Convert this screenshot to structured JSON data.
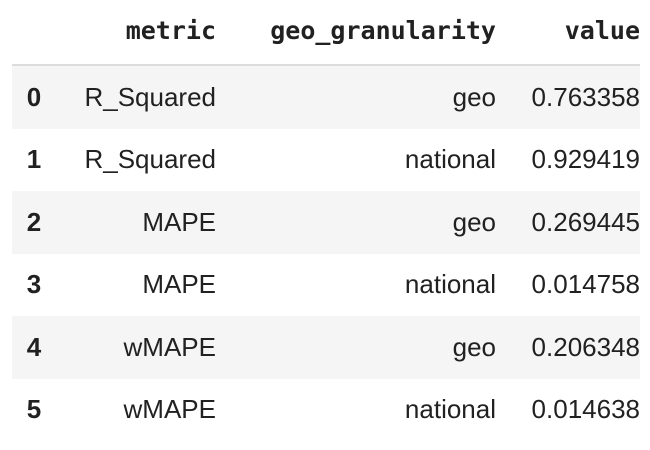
{
  "columns": [
    "",
    "metric",
    "geo_granularity",
    "value"
  ],
  "rows": [
    {
      "index": "0",
      "metric": "R_Squared",
      "geo_granularity": "geo",
      "value": "0.763358"
    },
    {
      "index": "1",
      "metric": "R_Squared",
      "geo_granularity": "national",
      "value": "0.929419"
    },
    {
      "index": "2",
      "metric": "MAPE",
      "geo_granularity": "geo",
      "value": "0.269445"
    },
    {
      "index": "3",
      "metric": "MAPE",
      "geo_granularity": "national",
      "value": "0.014758"
    },
    {
      "index": "4",
      "metric": "wMAPE",
      "geo_granularity": "geo",
      "value": "0.206348"
    },
    {
      "index": "5",
      "metric": "wMAPE",
      "geo_granularity": "national",
      "value": "0.014638"
    }
  ]
}
